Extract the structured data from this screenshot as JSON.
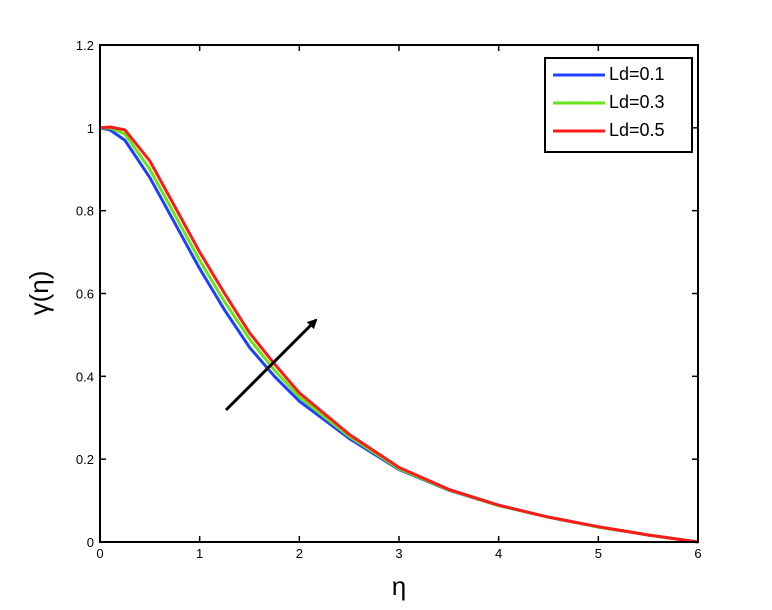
{
  "chart_data": {
    "type": "line",
    "x_label": "η",
    "y_label": "γ(η)",
    "x": [
      0,
      0.1,
      0.25,
      0.5,
      0.75,
      1,
      1.25,
      1.5,
      1.75,
      2,
      2.5,
      3,
      3.5,
      4,
      4.5,
      5,
      5.5,
      6
    ],
    "series": [
      {
        "name": "Ld=0.1",
        "color": "#1f3fff",
        "values": [
          1,
          0.995,
          0.97,
          0.88,
          0.77,
          0.66,
          0.56,
          0.47,
          0.4,
          0.34,
          0.25,
          0.175,
          0.125,
          0.088,
          0.06,
          0.036,
          0.017,
          0
        ]
      },
      {
        "name": "Ld=0.3",
        "color": "#66e61a",
        "values": [
          1,
          1,
          0.985,
          0.9,
          0.79,
          0.68,
          0.58,
          0.49,
          0.415,
          0.35,
          0.255,
          0.177,
          0.126,
          0.088,
          0.06,
          0.036,
          0.017,
          0
        ]
      },
      {
        "name": "Ld=0.5",
        "color": "#ff1a1a",
        "values": [
          1,
          1.002,
          0.995,
          0.92,
          0.81,
          0.7,
          0.6,
          0.505,
          0.43,
          0.36,
          0.26,
          0.18,
          0.127,
          0.089,
          0.06,
          0.037,
          0.017,
          0
        ]
      }
    ],
    "xlim": [
      0,
      6
    ],
    "ylim": [
      0,
      1.2
    ],
    "xticks": [
      0,
      1,
      2,
      3,
      4,
      5,
      6
    ],
    "yticks": [
      0,
      0.2,
      0.4,
      0.6,
      0.8,
      1,
      1.2
    ],
    "legend": "upper-right"
  }
}
